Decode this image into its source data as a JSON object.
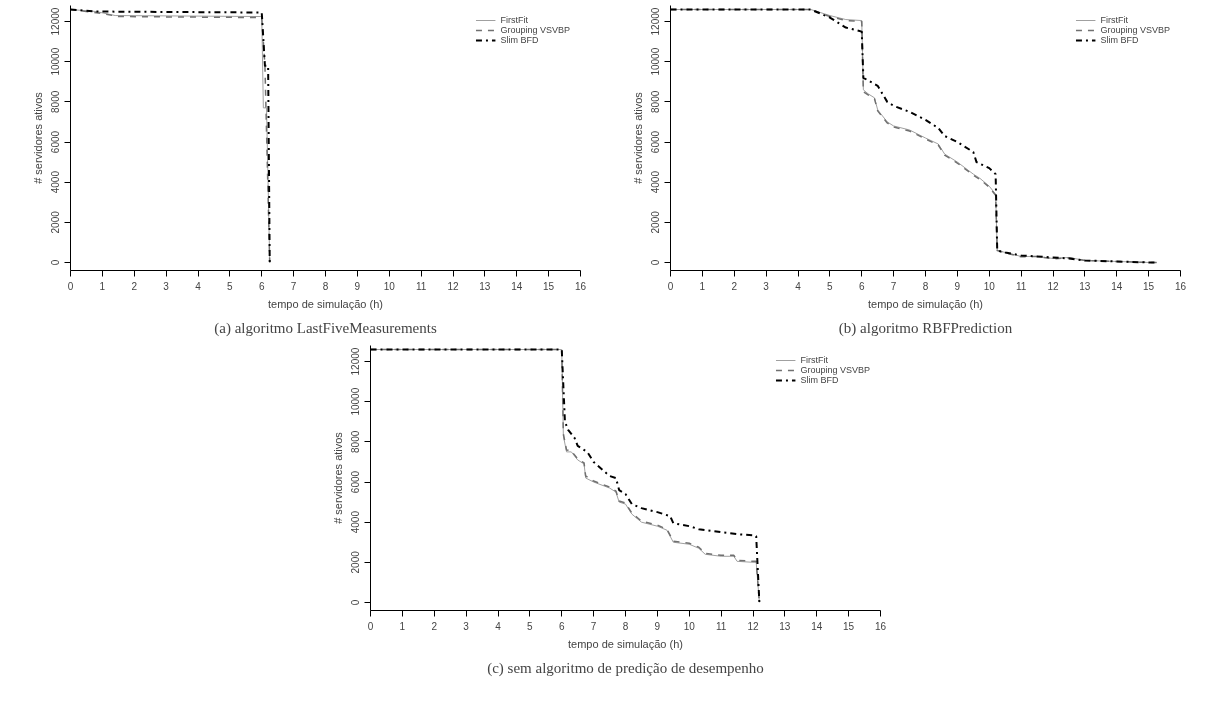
{
  "chart_data": [
    {
      "type": "line",
      "title": "(a) algoritmo LastFiveMeasurements",
      "xlabel": "tempo de simulação (h)",
      "ylabel": "# servidores ativos",
      "xlim": [
        0,
        16
      ],
      "ylim": [
        -400,
        12800
      ],
      "xticks": [
        0,
        1,
        2,
        3,
        4,
        5,
        6,
        7,
        8,
        9,
        10,
        11,
        12,
        13,
        14,
        15,
        16
      ],
      "yticks": [
        0,
        2000,
        4000,
        6000,
        8000,
        10000,
        12000
      ],
      "grid": false,
      "legend": "top right",
      "series": [
        {
          "name": "FirstFit",
          "color": "#a0a0a0",
          "line_style": "solid",
          "x": [
            0,
            0.8,
            1.4,
            6,
            6.05,
            6.15,
            6.25
          ],
          "values": [
            12600,
            12500,
            12300,
            12250,
            7700,
            7700,
            0
          ]
        },
        {
          "name": "Grouping VSVBP",
          "color": "#707070",
          "line_style": "dashed",
          "x": [
            0,
            1,
            1.5,
            6,
            6.1,
            6.25
          ],
          "values": [
            12600,
            12400,
            12250,
            12200,
            9800,
            0
          ]
        },
        {
          "name": "Slim BFD",
          "color": "#000000",
          "line_style": "dashdot",
          "x": [
            0,
            0.8,
            6,
            6.1,
            6.2,
            6.25
          ],
          "values": [
            12600,
            12500,
            12450,
            9800,
            9800,
            0
          ]
        }
      ]
    },
    {
      "type": "line",
      "title": "(b) algoritmo RBFPrediction",
      "xlabel": "tempo de simulação (h)",
      "ylabel": "# servidores ativos",
      "xlim": [
        0,
        16
      ],
      "ylim": [
        -400,
        12800
      ],
      "xticks": [
        0,
        1,
        2,
        3,
        4,
        5,
        6,
        7,
        8,
        9,
        10,
        11,
        12,
        13,
        14,
        15,
        16
      ],
      "yticks": [
        0,
        2000,
        4000,
        6000,
        8000,
        10000,
        12000
      ],
      "grid": false,
      "legend": "top right",
      "series": [
        {
          "name": "FirstFit",
          "color": "#a0a0a0",
          "line_style": "solid",
          "x": [
            0,
            4.4,
            5,
            5.5,
            6,
            6.05,
            6.2,
            6.4,
            6.5,
            6.8,
            7,
            7.5,
            8,
            8.4,
            8.6,
            9,
            9.5,
            9.7,
            10,
            10.2,
            10.25,
            10.5,
            11,
            11.5,
            12,
            12.5,
            13,
            14,
            15,
            15.25
          ],
          "values": [
            12600,
            12600,
            12300,
            12100,
            12050,
            8600,
            8400,
            8200,
            7600,
            7000,
            6800,
            6600,
            6200,
            5900,
            5400,
            5000,
            4400,
            4200,
            3800,
            3400,
            600,
            500,
            300,
            300,
            200,
            250,
            100,
            50,
            0,
            0
          ]
        },
        {
          "name": "Grouping VSVBP",
          "color": "#707070",
          "line_style": "dashed",
          "x": [
            0,
            4.4,
            5,
            5.5,
            6,
            6.05,
            6.2,
            6.4,
            6.5,
            6.8,
            7,
            7.5,
            8,
            8.4,
            8.6,
            9,
            9.5,
            9.7,
            10,
            10.2,
            10.25,
            10.5,
            11,
            11.5,
            12,
            12.5,
            13,
            14,
            15,
            15.25
          ],
          "values": [
            12600,
            12600,
            12250,
            12050,
            12000,
            8500,
            8350,
            8150,
            7550,
            6950,
            6750,
            6550,
            6150,
            5850,
            5350,
            4950,
            4350,
            4150,
            3750,
            3350,
            600,
            480,
            280,
            300,
            180,
            230,
            100,
            50,
            0,
            0
          ]
        },
        {
          "name": "Slim BFD",
          "color": "#000000",
          "line_style": "dashdot",
          "x": [
            0,
            4.4,
            5,
            5.5,
            6,
            6.05,
            6.5,
            6.8,
            7,
            7.5,
            8,
            8.4,
            8.6,
            9,
            9.5,
            9.6,
            10,
            10.2,
            10.25,
            10.5,
            11,
            12,
            12.5,
            13,
            14,
            15,
            15.25
          ],
          "values": [
            12600,
            12600,
            12200,
            11700,
            11500,
            9200,
            8800,
            8000,
            7800,
            7500,
            7100,
            6700,
            6300,
            6000,
            5500,
            5000,
            4700,
            4400,
            600,
            500,
            350,
            250,
            200,
            100,
            50,
            0,
            0
          ]
        }
      ]
    },
    {
      "type": "line",
      "title": "(c) sem algoritmo de predição de desempenho",
      "xlabel": "tempo de simulação (h)",
      "ylabel": "# servidores ativos",
      "xlim": [
        0,
        16
      ],
      "ylim": [
        -400,
        12800
      ],
      "xticks": [
        0,
        1,
        2,
        3,
        4,
        5,
        6,
        7,
        8,
        9,
        10,
        11,
        12,
        13,
        14,
        15,
        16
      ],
      "yticks": [
        0,
        2000,
        4000,
        6000,
        8000,
        10000,
        12000
      ],
      "grid": false,
      "legend": "top right",
      "series": [
        {
          "name": "FirstFit",
          "color": "#a0a0a0",
          "line_style": "solid",
          "x": [
            0,
            6,
            6.05,
            6.15,
            6.3,
            6.5,
            6.7,
            6.75,
            7,
            7.5,
            7.7,
            7.8,
            8,
            8.2,
            8.5,
            9,
            9.3,
            9.5,
            10,
            10.3,
            10.5,
            11,
            11.4,
            11.5,
            12,
            12.1,
            12.2
          ],
          "values": [
            12600,
            12600,
            8300,
            7500,
            7500,
            7100,
            6900,
            6200,
            6000,
            5700,
            5500,
            5000,
            4900,
            4400,
            4000,
            3800,
            3600,
            3000,
            2900,
            2700,
            2400,
            2300,
            2300,
            2050,
            2000,
            2000,
            0
          ]
        },
        {
          "name": "Grouping VSVBP",
          "color": "#707070",
          "line_style": "dashed",
          "x": [
            0,
            6,
            6.05,
            6.15,
            6.3,
            6.5,
            6.7,
            6.75,
            7,
            7.5,
            7.7,
            7.8,
            8,
            8.2,
            8.5,
            9,
            9.3,
            9.5,
            10,
            10.3,
            10.5,
            11,
            11.4,
            11.5,
            12,
            12.1,
            12.2
          ],
          "values": [
            12600,
            12600,
            8400,
            7600,
            7550,
            7150,
            6950,
            6300,
            6050,
            5750,
            5550,
            5050,
            4950,
            4450,
            4050,
            3850,
            3650,
            3050,
            2950,
            2750,
            2450,
            2350,
            2350,
            2100,
            2050,
            2050,
            0
          ]
        },
        {
          "name": "Slim BFD",
          "color": "#000000",
          "line_style": "dashdot",
          "x": [
            0,
            6,
            6.1,
            6.2,
            6.4,
            6.5,
            6.8,
            7,
            7.5,
            7.7,
            7.8,
            8,
            8.2,
            8.5,
            9,
            9.4,
            9.5,
            10,
            10.3,
            11,
            11.5,
            12,
            12.1,
            12.2
          ],
          "values": [
            12600,
            12600,
            9000,
            8600,
            8200,
            7800,
            7500,
            7000,
            6300,
            6200,
            5600,
            5400,
            4900,
            4700,
            4500,
            4300,
            3950,
            3800,
            3650,
            3500,
            3400,
            3350,
            3300,
            0
          ]
        }
      ]
    }
  ]
}
